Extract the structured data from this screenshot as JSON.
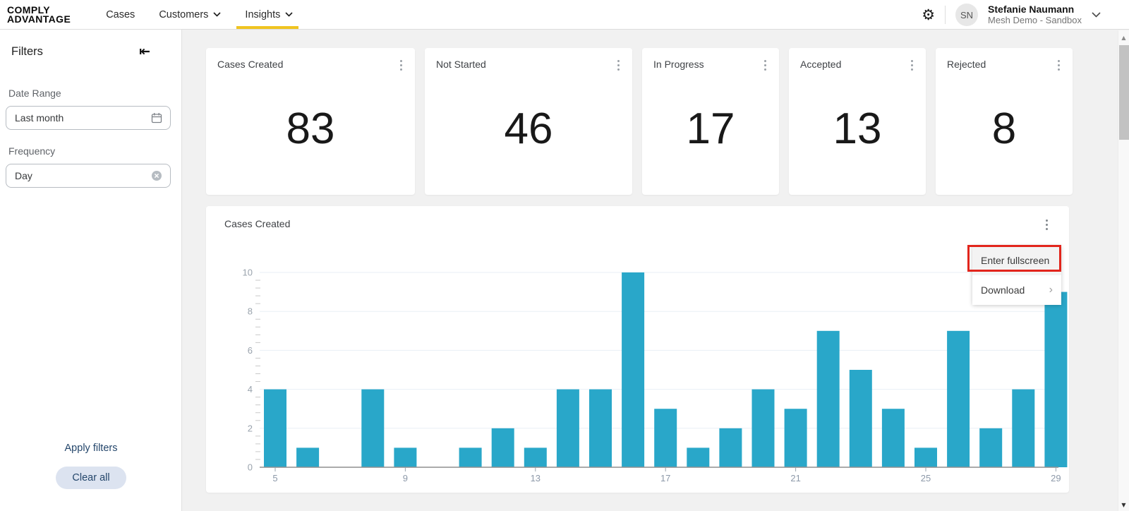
{
  "colors": {
    "accent_yellow": "#F0C420",
    "bar": "#29A7C9",
    "annotation_red": "#E2251C",
    "navy": "#24466B",
    "pill_bg": "#DCE3F0"
  },
  "icons": {
    "collapse": "⇤",
    "gear": "⚙",
    "submenu_arrow": "›",
    "scroll_up": "▲",
    "scroll_down": "▼"
  },
  "header": {
    "brand": {
      "line1": "COMPLY",
      "line2": "ADVANTAGE"
    },
    "nav": [
      {
        "label": "Cases",
        "dropdown": false,
        "active": false
      },
      {
        "label": "Customers",
        "dropdown": true,
        "active": false
      },
      {
        "label": "Insights",
        "dropdown": true,
        "active": true
      }
    ],
    "user": {
      "initials": "SN",
      "name": "Stefanie Naumann",
      "org": "Mesh Demo - Sandbox"
    }
  },
  "sidebar": {
    "title": "Filters",
    "fields": [
      {
        "label": "Date Range",
        "value": "Last month",
        "icon": "calendar"
      },
      {
        "label": "Frequency",
        "value": "Day",
        "icon": "clear"
      }
    ],
    "apply_label": "Apply filters",
    "clear_label": "Clear all"
  },
  "stat_cards": [
    {
      "title": "Cases Created",
      "value": "83"
    },
    {
      "title": "Not Started",
      "value": "46"
    },
    {
      "title": "In Progress",
      "value": "17"
    },
    {
      "title": "Accepted",
      "value": "13"
    },
    {
      "title": "Rejected",
      "value": "8"
    }
  ],
  "chart_card": {
    "title": "Cases Created",
    "menu": {
      "items": [
        {
          "label": "Enter fullscreen",
          "annotated": true
        },
        {
          "label": "Download",
          "has_submenu": true
        }
      ]
    }
  },
  "chart_data": {
    "type": "bar",
    "title": "Cases Created",
    "xlabel": "",
    "ylabel": "",
    "x": [
      5,
      6,
      7,
      8,
      9,
      10,
      11,
      12,
      13,
      14,
      15,
      16,
      17,
      18,
      19,
      20,
      21,
      22,
      23,
      24,
      25,
      26,
      27,
      28,
      29
    ],
    "values": [
      4,
      1,
      0,
      4,
      1,
      0,
      1,
      2,
      1,
      4,
      4,
      10,
      3,
      1,
      2,
      4,
      3,
      7,
      5,
      3,
      1,
      7,
      2,
      4,
      9
    ],
    "x_tick_labels": [
      5,
      9,
      13,
      17,
      21,
      25,
      29
    ],
    "y_ticks": [
      0,
      2,
      4,
      6,
      8,
      10
    ],
    "ylim": [
      0,
      10
    ],
    "grid": true,
    "legend": false,
    "bar_color": "#29A7C9",
    "total": 83
  }
}
